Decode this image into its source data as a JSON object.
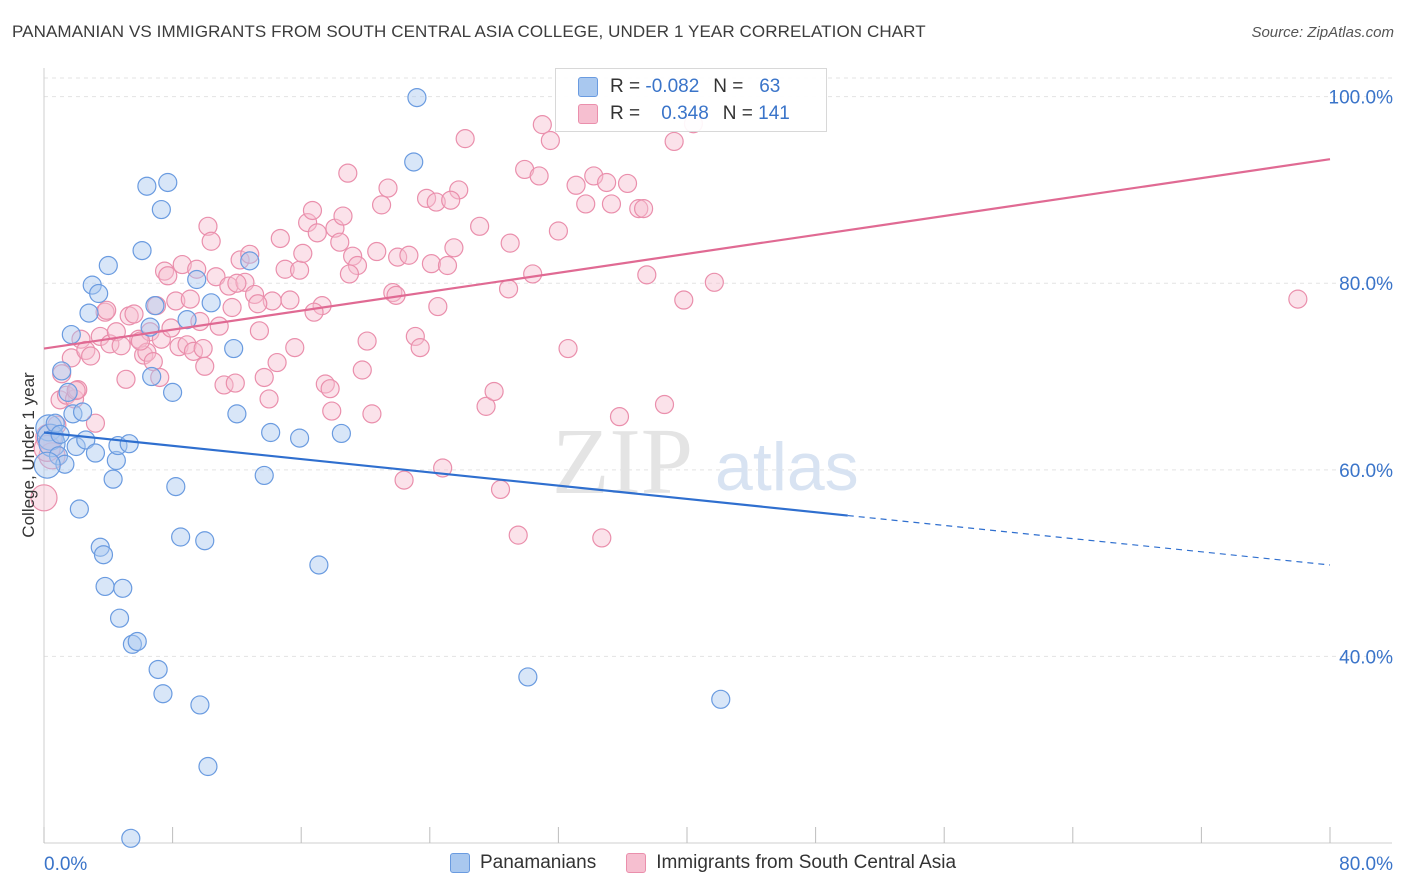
{
  "title": "PANAMANIAN VS IMMIGRANTS FROM SOUTH CENTRAL ASIA COLLEGE, UNDER 1 YEAR CORRELATION CHART",
  "source": "Source: ZipAtlas.com",
  "watermark": {
    "zip": "ZIP",
    "atlas": "atlas"
  },
  "colors": {
    "blue_fill": "#a9c8ef",
    "blue_stroke": "#6a9be0",
    "blue_line": "#2f6fcf",
    "pink_fill": "#f6bfd0",
    "pink_stroke": "#ea8fac",
    "pink_line": "#e06a93",
    "axis_label": "#3a74c9",
    "grid": "#e3e3e3"
  },
  "legend": {
    "rows": [
      {
        "r_label": "R =",
        "r_value": "-0.082",
        "n_label": "N =",
        "n_value": "63"
      },
      {
        "r_label": "R =",
        "r_value": "0.348",
        "n_label": "N =",
        "n_value": "141"
      }
    ]
  },
  "bottom_legend": [
    "Panamanians",
    "Immigrants from South Central Asia"
  ],
  "chart_data": {
    "type": "scatter",
    "title": "PANAMANIAN VS IMMIGRANTS FROM SOUTH CENTRAL ASIA COLLEGE, UNDER 1 YEAR CORRELATION CHART",
    "ylabel": "College, Under 1 year",
    "xlim": [
      0,
      80
    ],
    "ylim": [
      20,
      102
    ],
    "x_ticks": [
      "0.0%",
      "80.0%"
    ],
    "y_ticks": [
      {
        "value": 100,
        "label": "100.0%"
      },
      {
        "value": 80,
        "label": "80.0%"
      },
      {
        "value": 60,
        "label": "60.0%"
      },
      {
        "value": 40,
        "label": "40.0%"
      }
    ],
    "grid": true,
    "legend_position": "top-center",
    "series": [
      {
        "name": "Panamanians",
        "color": "blue",
        "r": -0.082,
        "n": 63,
        "trend": {
          "x0": 0,
          "y0": 64.0,
          "x1": 50,
          "y1": 55.1,
          "dashed_to_x": 80,
          "dashed_to_y": 49.8
        },
        "points": [
          [
            0.3,
            64.5
          ],
          [
            0.4,
            63.5
          ],
          [
            0.5,
            62.8
          ],
          [
            0.7,
            65.0
          ],
          [
            0.9,
            61.5
          ],
          [
            1.0,
            63.8
          ],
          [
            1.1,
            70.6
          ],
          [
            1.3,
            60.6
          ],
          [
            1.5,
            68.3
          ],
          [
            1.7,
            74.5
          ],
          [
            1.8,
            66.0
          ],
          [
            2.0,
            62.5
          ],
          [
            2.2,
            55.8
          ],
          [
            2.4,
            66.2
          ],
          [
            2.6,
            63.2
          ],
          [
            2.8,
            76.8
          ],
          [
            3.0,
            79.8
          ],
          [
            3.2,
            61.8
          ],
          [
            3.4,
            78.9
          ],
          [
            3.5,
            51.7
          ],
          [
            3.7,
            50.9
          ],
          [
            3.8,
            47.5
          ],
          [
            4.0,
            81.9
          ],
          [
            4.3,
            59.0
          ],
          [
            4.5,
            61.0
          ],
          [
            4.6,
            62.6
          ],
          [
            4.7,
            44.1
          ],
          [
            4.9,
            47.3
          ],
          [
            5.3,
            62.8
          ],
          [
            5.5,
            41.3
          ],
          [
            5.8,
            41.6
          ],
          [
            6.1,
            83.5
          ],
          [
            6.4,
            90.4
          ],
          [
            6.7,
            70.0
          ],
          [
            6.9,
            77.6
          ],
          [
            7.1,
            38.6
          ],
          [
            7.3,
            87.9
          ],
          [
            7.4,
            36.0
          ],
          [
            7.7,
            90.8
          ],
          [
            8.0,
            68.3
          ],
          [
            8.2,
            58.2
          ],
          [
            8.5,
            52.8
          ],
          [
            8.9,
            76.1
          ],
          [
            9.5,
            80.4
          ],
          [
            9.7,
            34.8
          ],
          [
            10.0,
            52.4
          ],
          [
            10.2,
            28.2
          ],
          [
            10.4,
            77.9
          ],
          [
            11.8,
            73.0
          ],
          [
            12.0,
            66.0
          ],
          [
            12.8,
            82.4
          ],
          [
            13.7,
            59.4
          ],
          [
            14.1,
            64.0
          ],
          [
            15.9,
            63.4
          ],
          [
            17.1,
            49.8
          ],
          [
            18.5,
            63.9
          ],
          [
            23.0,
            93.0
          ],
          [
            23.2,
            99.9
          ],
          [
            30.1,
            37.8
          ],
          [
            42.1,
            35.4
          ],
          [
            5.4,
            20.5
          ],
          [
            6.6,
            75.3
          ],
          [
            0.2,
            60.5
          ]
        ]
      },
      {
        "name": "Immigrants from South Central Asia",
        "color": "pink",
        "r": 0.348,
        "n": 141,
        "trend": {
          "x0": 0,
          "y0": 73.0,
          "x1": 80,
          "y1": 93.3
        },
        "points": [
          [
            0.0,
            57.0
          ],
          [
            0.3,
            63.5
          ],
          [
            0.5,
            61.5
          ],
          [
            0.8,
            64.8
          ],
          [
            1.0,
            67.5
          ],
          [
            1.1,
            70.3
          ],
          [
            1.4,
            68.0
          ],
          [
            1.7,
            72.0
          ],
          [
            1.9,
            67.6
          ],
          [
            2.1,
            68.6
          ],
          [
            2.3,
            74.0
          ],
          [
            2.6,
            72.8
          ],
          [
            2.9,
            72.2
          ],
          [
            3.2,
            65.0
          ],
          [
            3.5,
            74.3
          ],
          [
            3.8,
            76.9
          ],
          [
            4.1,
            73.5
          ],
          [
            4.5,
            74.8
          ],
          [
            4.8,
            73.3
          ],
          [
            5.1,
            69.7
          ],
          [
            5.3,
            76.5
          ],
          [
            5.6,
            76.7
          ],
          [
            5.9,
            74.0
          ],
          [
            6.2,
            72.3
          ],
          [
            6.4,
            72.6
          ],
          [
            6.6,
            74.8
          ],
          [
            6.8,
            71.6
          ],
          [
            7.0,
            77.6
          ],
          [
            7.3,
            74.0
          ],
          [
            7.5,
            81.3
          ],
          [
            7.7,
            80.8
          ],
          [
            7.9,
            75.2
          ],
          [
            8.2,
            78.1
          ],
          [
            8.4,
            73.2
          ],
          [
            8.6,
            82.0
          ],
          [
            8.9,
            73.4
          ],
          [
            9.1,
            78.3
          ],
          [
            9.3,
            72.7
          ],
          [
            9.5,
            81.5
          ],
          [
            9.7,
            75.9
          ],
          [
            10.0,
            71.1
          ],
          [
            10.2,
            86.1
          ],
          [
            10.4,
            84.5
          ],
          [
            10.7,
            80.7
          ],
          [
            10.9,
            75.4
          ],
          [
            11.2,
            69.1
          ],
          [
            11.5,
            79.7
          ],
          [
            11.7,
            77.4
          ],
          [
            11.9,
            69.3
          ],
          [
            12.2,
            82.5
          ],
          [
            12.5,
            80.1
          ],
          [
            12.8,
            83.1
          ],
          [
            13.1,
            78.8
          ],
          [
            13.4,
            74.9
          ],
          [
            13.7,
            69.9
          ],
          [
            14.0,
            67.6
          ],
          [
            14.2,
            78.1
          ],
          [
            14.5,
            71.5
          ],
          [
            14.7,
            84.8
          ],
          [
            15.0,
            81.5
          ],
          [
            15.3,
            78.2
          ],
          [
            15.6,
            73.1
          ],
          [
            15.9,
            81.4
          ],
          [
            16.1,
            83.2
          ],
          [
            16.4,
            86.5
          ],
          [
            16.7,
            87.8
          ],
          [
            17.0,
            85.4
          ],
          [
            17.3,
            77.6
          ],
          [
            17.5,
            69.2
          ],
          [
            17.8,
            68.7
          ],
          [
            18.1,
            85.9
          ],
          [
            18.4,
            84.4
          ],
          [
            18.6,
            87.2
          ],
          [
            18.9,
            91.8
          ],
          [
            19.2,
            82.9
          ],
          [
            19.5,
            81.9
          ],
          [
            19.8,
            70.7
          ],
          [
            20.1,
            73.8
          ],
          [
            20.4,
            66.0
          ],
          [
            20.7,
            83.4
          ],
          [
            21.0,
            88.4
          ],
          [
            21.4,
            90.2
          ],
          [
            21.7,
            79.0
          ],
          [
            22.0,
            82.8
          ],
          [
            22.4,
            58.9
          ],
          [
            22.7,
            83.0
          ],
          [
            23.1,
            74.3
          ],
          [
            23.4,
            73.1
          ],
          [
            23.8,
            89.1
          ],
          [
            24.1,
            82.1
          ],
          [
            24.4,
            88.7
          ],
          [
            24.8,
            60.2
          ],
          [
            25.1,
            81.9
          ],
          [
            25.5,
            83.8
          ],
          [
            25.8,
            90.0
          ],
          [
            26.2,
            95.5
          ],
          [
            27.1,
            86.1
          ],
          [
            27.5,
            66.8
          ],
          [
            28.0,
            68.4
          ],
          [
            28.4,
            57.9
          ],
          [
            29.0,
            84.3
          ],
          [
            29.5,
            53.0
          ],
          [
            29.9,
            92.2
          ],
          [
            30.4,
            81.0
          ],
          [
            31.0,
            97.0
          ],
          [
            31.5,
            95.3
          ],
          [
            32.0,
            85.6
          ],
          [
            32.6,
            73.0
          ],
          [
            33.1,
            90.5
          ],
          [
            33.7,
            88.5
          ],
          [
            34.2,
            91.5
          ],
          [
            34.7,
            52.7
          ],
          [
            35.3,
            88.5
          ],
          [
            35.8,
            65.7
          ],
          [
            36.3,
            90.7
          ],
          [
            37.0,
            88.0
          ],
          [
            37.5,
            80.9
          ],
          [
            38.6,
            67.0
          ],
          [
            39.8,
            78.2
          ],
          [
            41.7,
            80.1
          ],
          [
            39.2,
            95.2
          ],
          [
            40.4,
            97.1
          ],
          [
            3.9,
            77.1
          ],
          [
            7.2,
            69.9
          ],
          [
            9.9,
            73.0
          ],
          [
            13.3,
            77.8
          ],
          [
            16.8,
            76.9
          ],
          [
            19.0,
            81.0
          ],
          [
            21.9,
            78.7
          ],
          [
            25.3,
            88.9
          ],
          [
            28.9,
            79.4
          ],
          [
            35.0,
            90.8
          ],
          [
            37.3,
            88.0
          ],
          [
            78.0,
            78.3
          ],
          [
            6.0,
            73.8
          ],
          [
            12.0,
            80.0
          ],
          [
            2.0,
            68.5
          ],
          [
            0.2,
            62.3
          ],
          [
            17.9,
            66.3
          ],
          [
            24.5,
            77.5
          ],
          [
            30.8,
            91.5
          ]
        ]
      }
    ]
  }
}
